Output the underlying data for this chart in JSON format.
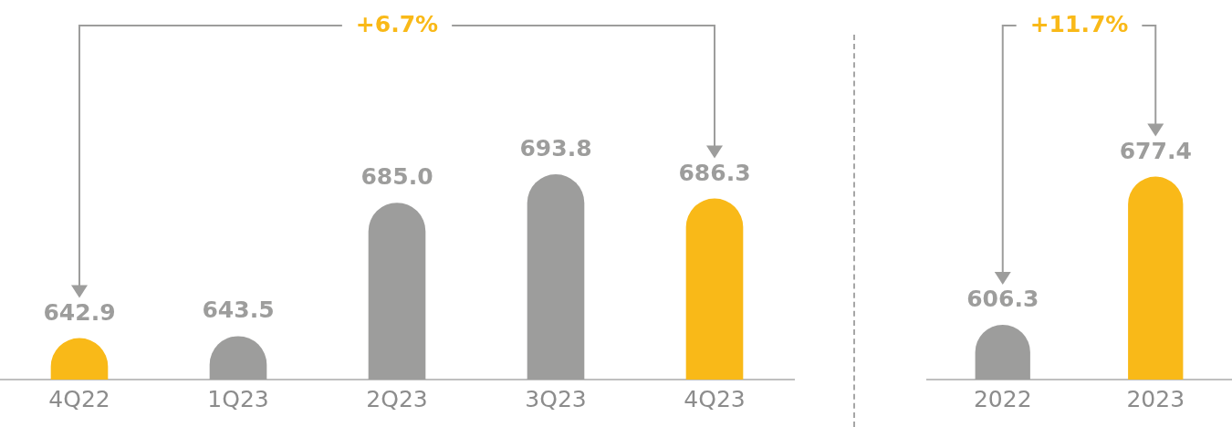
{
  "chart_data": [
    {
      "type": "bar",
      "categories": [
        "4Q22",
        "1Q23",
        "2Q23",
        "3Q23",
        "4Q23"
      ],
      "values": [
        642.9,
        643.5,
        685.0,
        693.8,
        686.3
      ],
      "colors": [
        "#f9b918",
        "#9d9d9c",
        "#9d9d9c",
        "#9d9d9c",
        "#f9b918"
      ],
      "value_labels": [
        "642.9",
        "643.5",
        "685.0",
        "693.8",
        "686.3"
      ],
      "tick_labels": "x",
      "grid": false,
      "legend": false,
      "annotations": [
        "+6.7%"
      ]
    },
    {
      "type": "bar",
      "categories": [
        "2022",
        "2023"
      ],
      "values": [
        606.3,
        677.4
      ],
      "colors": [
        "#9d9d9c",
        "#f9b918"
      ],
      "value_labels": [
        "606.3",
        "677.4"
      ],
      "tick_labels": "x",
      "grid": false,
      "legend": false,
      "annotations": [
        "+11.7%"
      ]
    }
  ]
}
